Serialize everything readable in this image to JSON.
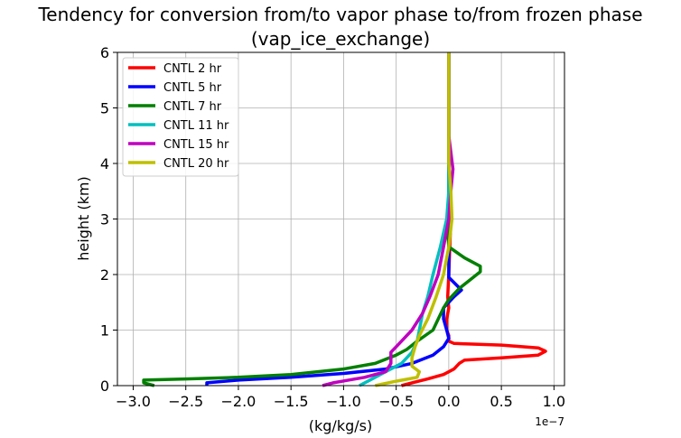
{
  "chart_data": {
    "type": "line",
    "title": "Tendency for conversion from/to vapor phase to/from frozen phase",
    "subtitle": "(vap_ice_exchange)",
    "xlabel": "(kg/kg/s)",
    "ylabel": "height (km)",
    "x_offset_label": "1e−7",
    "xlim": [
      -3.15,
      1.1
    ],
    "ylim": [
      0,
      6
    ],
    "xticks": [
      -3.0,
      -2.5,
      -2.0,
      -1.5,
      -1.0,
      -0.5,
      0.0,
      0.5,
      1.0
    ],
    "xtick_labels": [
      "−3.0",
      "−2.5",
      "−2.0",
      "−1.5",
      "−1.0",
      "−0.5",
      "0.0",
      "0.5",
      "1.0"
    ],
    "yticks": [
      0,
      1,
      2,
      3,
      4,
      5,
      6
    ],
    "ytick_labels": [
      "0",
      "1",
      "2",
      "3",
      "4",
      "5",
      "6"
    ],
    "grid": true,
    "legend_position": "top-left",
    "series": [
      {
        "name": "CNTL 2 hr",
        "color": "#ff0000",
        "points": [
          [
            -0.45,
            0
          ],
          [
            -0.35,
            0.05
          ],
          [
            -0.2,
            0.12
          ],
          [
            -0.05,
            0.2
          ],
          [
            0.05,
            0.3
          ],
          [
            0.1,
            0.4
          ],
          [
            0.15,
            0.46
          ],
          [
            0.5,
            0.5
          ],
          [
            0.85,
            0.55
          ],
          [
            0.92,
            0.62
          ],
          [
            0.85,
            0.68
          ],
          [
            0.5,
            0.73
          ],
          [
            0.05,
            0.76
          ],
          [
            0.0,
            0.8
          ],
          [
            0.0,
            0.9
          ],
          [
            -0.02,
            1.0
          ],
          [
            -0.02,
            1.2
          ],
          [
            0.0,
            1.4
          ],
          [
            -0.01,
            1.6
          ],
          [
            0.0,
            2.0
          ],
          [
            0.01,
            2.5
          ],
          [
            0.02,
            3.0
          ],
          [
            0.01,
            3.5
          ],
          [
            0.0,
            4.0
          ],
          [
            0.0,
            5.0
          ],
          [
            0.0,
            6.0
          ]
        ]
      },
      {
        "name": "CNTL 5 hr",
        "color": "#0000ff",
        "points": [
          [
            -2.3,
            0
          ],
          [
            -2.3,
            0.05
          ],
          [
            -2.0,
            0.1
          ],
          [
            -1.5,
            0.15
          ],
          [
            -1.0,
            0.22
          ],
          [
            -0.6,
            0.3
          ],
          [
            -0.35,
            0.4
          ],
          [
            -0.15,
            0.55
          ],
          [
            -0.05,
            0.7
          ],
          [
            0.0,
            0.85
          ],
          [
            -0.02,
            1.0
          ],
          [
            -0.05,
            1.2
          ],
          [
            -0.05,
            1.4
          ],
          [
            0.05,
            1.6
          ],
          [
            0.12,
            1.72
          ],
          [
            0.0,
            1.95
          ],
          [
            0.0,
            2.1
          ],
          [
            0.0,
            2.5
          ],
          [
            0.0,
            3.0
          ],
          [
            0.0,
            3.5
          ],
          [
            0.0,
            4.0
          ],
          [
            0.0,
            5.0
          ],
          [
            0.0,
            6.0
          ]
        ]
      },
      {
        "name": "CNTL 7 hr",
        "color": "#008000",
        "points": [
          [
            -2.8,
            0
          ],
          [
            -2.9,
            0.05
          ],
          [
            -2.9,
            0.1
          ],
          [
            -2.5,
            0.12
          ],
          [
            -2.0,
            0.15
          ],
          [
            -1.5,
            0.2
          ],
          [
            -1.0,
            0.3
          ],
          [
            -0.7,
            0.4
          ],
          [
            -0.5,
            0.55
          ],
          [
            -0.4,
            0.65
          ],
          [
            -0.3,
            0.8
          ],
          [
            -0.15,
            1.0
          ],
          [
            -0.1,
            1.2
          ],
          [
            -0.05,
            1.4
          ],
          [
            0.0,
            1.55
          ],
          [
            0.1,
            1.75
          ],
          [
            0.2,
            1.9
          ],
          [
            0.3,
            2.05
          ],
          [
            0.3,
            2.15
          ],
          [
            0.15,
            2.3
          ],
          [
            0.0,
            2.5
          ],
          [
            -0.01,
            2.8
          ],
          [
            0.0,
            3.0
          ],
          [
            0.0,
            3.5
          ],
          [
            0.0,
            4.0
          ],
          [
            0.0,
            5.0
          ],
          [
            0.0,
            6.0
          ]
        ]
      },
      {
        "name": "CNTL 11 hr",
        "color": "#00bfbf",
        "points": [
          [
            -0.85,
            0
          ],
          [
            -0.75,
            0.1
          ],
          [
            -0.6,
            0.25
          ],
          [
            -0.45,
            0.4
          ],
          [
            -0.35,
            0.6
          ],
          [
            -0.3,
            0.8
          ],
          [
            -0.28,
            1.0
          ],
          [
            -0.25,
            1.3
          ],
          [
            -0.2,
            1.6
          ],
          [
            -0.15,
            2.0
          ],
          [
            -0.08,
            2.5
          ],
          [
            -0.02,
            3.0
          ],
          [
            0.0,
            3.5
          ],
          [
            0.0,
            4.0
          ],
          [
            0.0,
            5.0
          ],
          [
            0.0,
            6.0
          ]
        ]
      },
      {
        "name": "CNTL 15 hr",
        "color": "#bf00bf",
        "points": [
          [
            -1.2,
            0
          ],
          [
            -1.1,
            0.05
          ],
          [
            -0.8,
            0.15
          ],
          [
            -0.6,
            0.25
          ],
          [
            -0.55,
            0.4
          ],
          [
            -0.55,
            0.6
          ],
          [
            -0.45,
            0.8
          ],
          [
            -0.35,
            1.0
          ],
          [
            -0.25,
            1.3
          ],
          [
            -0.18,
            1.6
          ],
          [
            -0.1,
            2.0
          ],
          [
            -0.05,
            2.5
          ],
          [
            0.0,
            3.0
          ],
          [
            0.02,
            3.5
          ],
          [
            0.04,
            3.9
          ],
          [
            0.02,
            4.2
          ],
          [
            0.0,
            4.5
          ],
          [
            0.0,
            5.0
          ],
          [
            0.0,
            6.0
          ]
        ]
      },
      {
        "name": "CNTL 20 hr",
        "color": "#bfbf00",
        "points": [
          [
            -0.7,
            0
          ],
          [
            -0.5,
            0.08
          ],
          [
            -0.3,
            0.15
          ],
          [
            -0.28,
            0.25
          ],
          [
            -0.35,
            0.35
          ],
          [
            -0.35,
            0.5
          ],
          [
            -0.32,
            0.7
          ],
          [
            -0.28,
            0.9
          ],
          [
            -0.2,
            1.2
          ],
          [
            -0.12,
            1.6
          ],
          [
            -0.05,
            2.0
          ],
          [
            0.0,
            2.5
          ],
          [
            0.03,
            3.0
          ],
          [
            0.02,
            3.5
          ],
          [
            0.0,
            4.0
          ],
          [
            0.0,
            5.0
          ],
          [
            0.0,
            6.0
          ]
        ]
      }
    ]
  }
}
